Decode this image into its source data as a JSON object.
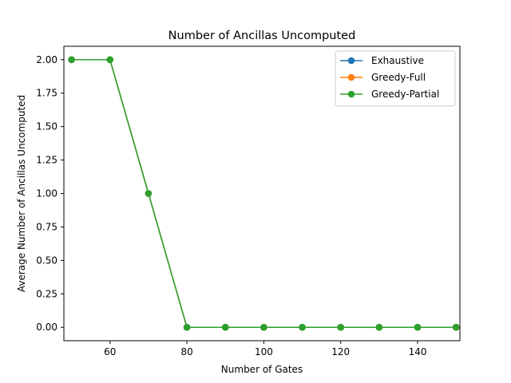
{
  "chart_data": {
    "type": "line",
    "title": "Number of Ancillas Uncomputed",
    "xlabel": "Number of Gates",
    "ylabel": "Average Number of Ancillas Uncomputed",
    "x": [
      50,
      60,
      70,
      80,
      90,
      100,
      110,
      120,
      130,
      140,
      150
    ],
    "xlim": [
      48,
      151
    ],
    "ylim": [
      -0.1,
      2.1
    ],
    "xticks": [
      60,
      80,
      100,
      120,
      140
    ],
    "yticks": [
      0.0,
      0.25,
      0.5,
      0.75,
      1.0,
      1.25,
      1.5,
      1.75,
      2.0
    ],
    "xtick_labels": [
      "60",
      "80",
      "100",
      "120",
      "140"
    ],
    "ytick_labels": [
      "0.00",
      "0.25",
      "0.50",
      "0.75",
      "1.00",
      "1.25",
      "1.50",
      "1.75",
      "2.00"
    ],
    "grid": false,
    "legend_position": "upper right",
    "series": [
      {
        "name": "Exhaustive",
        "color": "#1f77b4",
        "marker": "circle",
        "values": [
          2,
          2,
          1,
          0,
          0,
          0,
          0,
          0,
          0,
          0,
          0
        ]
      },
      {
        "name": "Greedy-Full",
        "color": "#ff7f0e",
        "marker": "circle",
        "values": [
          2,
          2,
          1,
          0,
          0,
          0,
          0,
          0,
          0,
          0,
          0
        ]
      },
      {
        "name": "Greedy-Partial",
        "color": "#2ca02c",
        "marker": "circle",
        "values": [
          2,
          2,
          1,
          0,
          0,
          0,
          0,
          0,
          0,
          0,
          0
        ]
      }
    ]
  }
}
